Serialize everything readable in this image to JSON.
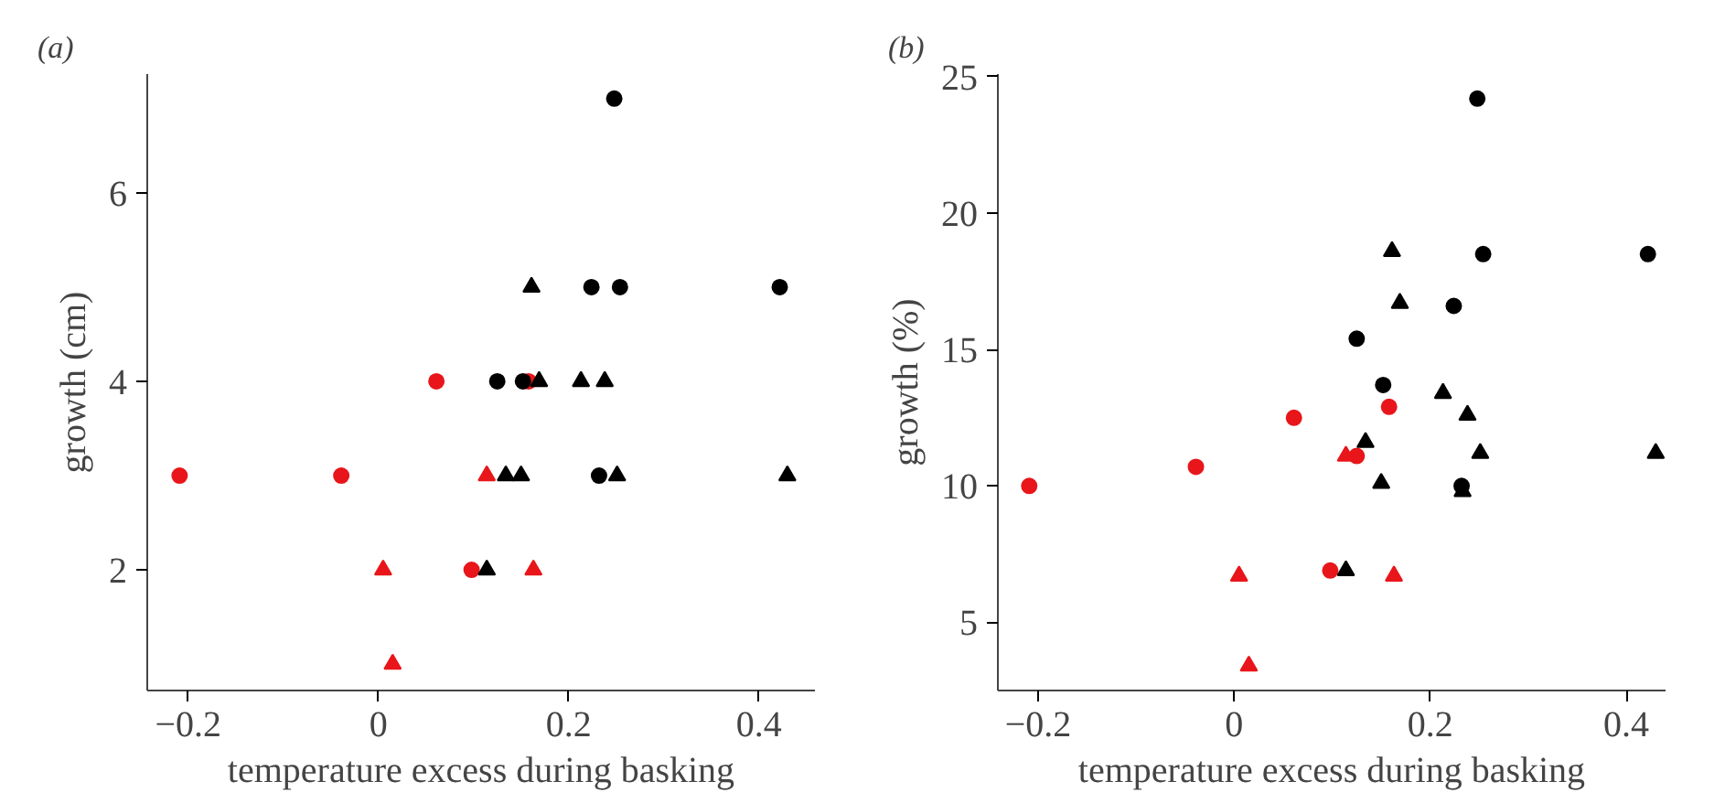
{
  "chart_data": [
    {
      "type": "scatter",
      "title": "(a)",
      "xlabel": "temperature excess during basking",
      "ylabel": "growth (cm)",
      "xlim": [
        -0.243,
        0.459
      ],
      "ylim": [
        0.72,
        7.26
      ],
      "xticks": [
        {
          "value": -0.2,
          "label": "−0.2"
        },
        0,
        0.2,
        0.4
      ],
      "yticks": [
        2,
        4,
        6
      ],
      "grid": false,
      "series": [
        {
          "color": "#e8161b",
          "marker": "circle",
          "x": [
            -0.209,
            -0.039,
            0.061,
            0.098,
            0.158
          ],
          "values": [
            3,
            3,
            4,
            2,
            4
          ]
        },
        {
          "color": "#e8161b",
          "marker": "triangle",
          "x": [
            0.005,
            0.015,
            0.114,
            0.163
          ],
          "values": [
            2,
            1,
            3,
            2
          ]
        },
        {
          "color": "#000000",
          "marker": "circle",
          "x": [
            0.125,
            0.152,
            0.224,
            0.248,
            0.254,
            0.232,
            0.422
          ],
          "values": [
            4,
            4,
            5,
            7,
            5,
            3,
            5
          ]
        },
        {
          "color": "#000000",
          "marker": "triangle",
          "x": [
            0.114,
            0.134,
            0.15,
            0.161,
            0.169,
            0.213,
            0.238,
            0.251,
            0.43
          ],
          "values": [
            2,
            3,
            3,
            5,
            4,
            4,
            4,
            3,
            3
          ]
        }
      ]
    },
    {
      "type": "scatter",
      "title": "(b)",
      "xlabel": "temperature excess during basking",
      "ylabel": "growth (%)",
      "xlim": [
        -0.241,
        0.44
      ],
      "ylim": [
        2.5,
        25.1
      ],
      "xticks": [
        {
          "value": -0.2,
          "label": "−0.2"
        },
        0,
        0.2,
        0.4
      ],
      "yticks": [
        5,
        10,
        15,
        20,
        25
      ],
      "grid": false,
      "series": [
        {
          "color": "#e8161b",
          "marker": "circle",
          "x": [
            -0.209,
            -0.039,
            0.061,
            0.098,
            0.125,
            0.158
          ],
          "values": [
            10.0,
            10.7,
            12.5,
            6.9,
            11.1,
            12.9
          ]
        },
        {
          "color": "#e8161b",
          "marker": "triangle",
          "x": [
            0.005,
            0.015,
            0.114,
            0.163
          ],
          "values": [
            6.7,
            3.4,
            11.1,
            6.7
          ]
        },
        {
          "color": "#000000",
          "marker": "circle",
          "x": [
            0.125,
            0.152,
            0.224,
            0.248,
            0.254,
            0.232,
            0.422
          ],
          "values": [
            15.4,
            13.7,
            16.6,
            24.2,
            18.5,
            10.0,
            18.5
          ]
        },
        {
          "color": "#000000",
          "marker": "triangle",
          "x": [
            0.114,
            0.134,
            0.15,
            0.161,
            0.169,
            0.213,
            0.238,
            0.251,
            0.233,
            0.43
          ],
          "values": [
            6.9,
            11.6,
            10.1,
            18.6,
            16.7,
            13.4,
            12.6,
            11.2,
            9.8,
            11.2
          ]
        }
      ]
    }
  ]
}
